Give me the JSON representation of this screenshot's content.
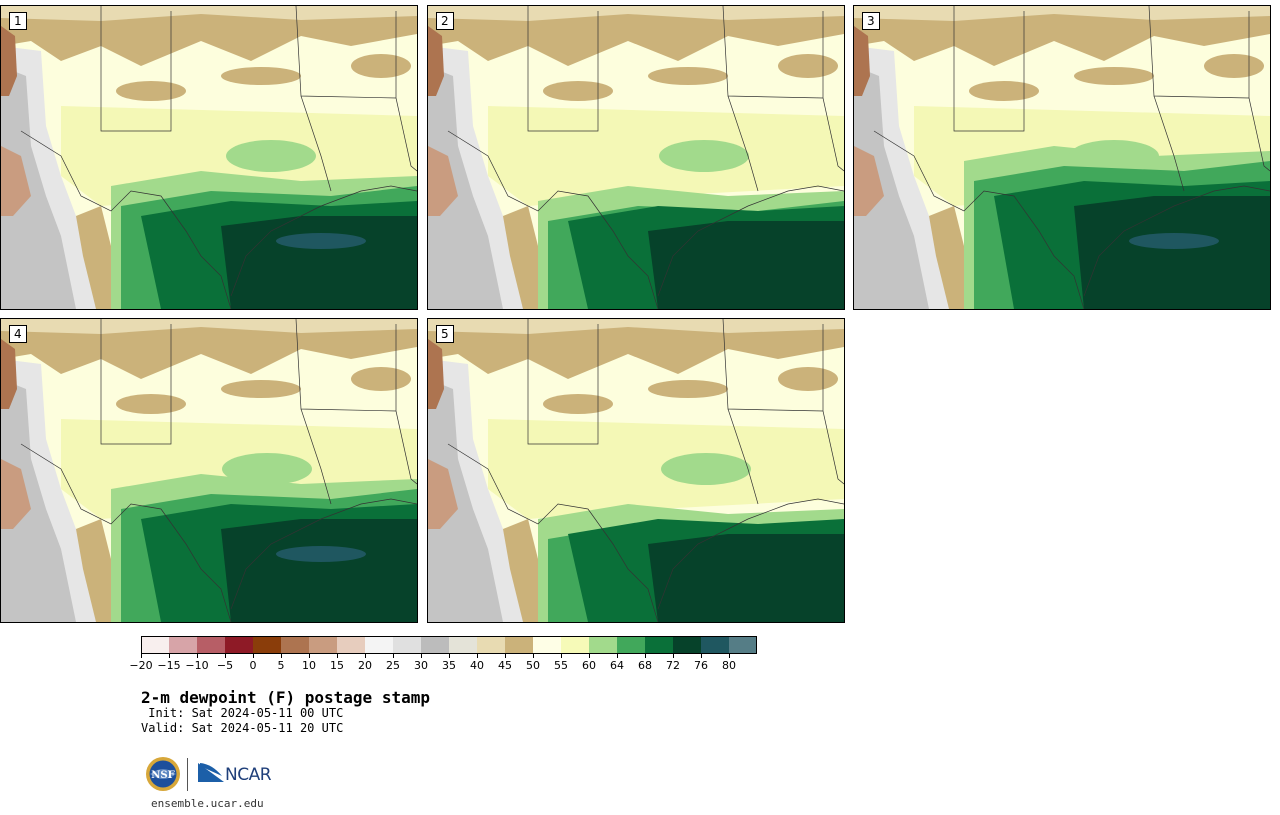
{
  "figure": {
    "title": "2-m dewpoint (F) postage stamp",
    "init_line": " Init: Sat 2024-05-11 00 UTC",
    "valid_line": "Valid: Sat 2024-05-11 20 UTC",
    "url": "ensemble.ucar.edu"
  },
  "members": [
    {
      "label": "1"
    },
    {
      "label": "2"
    },
    {
      "label": "3"
    },
    {
      "label": "4"
    },
    {
      "label": "5"
    }
  ],
  "colorbar": {
    "tick_labels": [
      "−20",
      "−15",
      "−10",
      "−5",
      "0",
      "5",
      "10",
      "15",
      "20",
      "25",
      "30",
      "35",
      "40",
      "45",
      "50",
      "55",
      "60",
      "64",
      "68",
      "72",
      "76",
      "80"
    ],
    "colors": [
      "#f8efee",
      "#d7a4a8",
      "#b75e66",
      "#8e1a26",
      "#8a3d0a",
      "#ad7450",
      "#c99c80",
      "#e7cdbe",
      "#f4f4f4",
      "#e0e0e0",
      "#bcbcbc",
      "#e4e3d8",
      "#e8dbb2",
      "#cbb27a",
      "#fefee6",
      "#f6fab8",
      "#a2da8c",
      "#41a85b",
      "#0a7039",
      "#06422a",
      "#1f5760",
      "#557d86"
    ]
  },
  "logos": {
    "nsf": "NSF",
    "ncar": "NCAR"
  }
}
